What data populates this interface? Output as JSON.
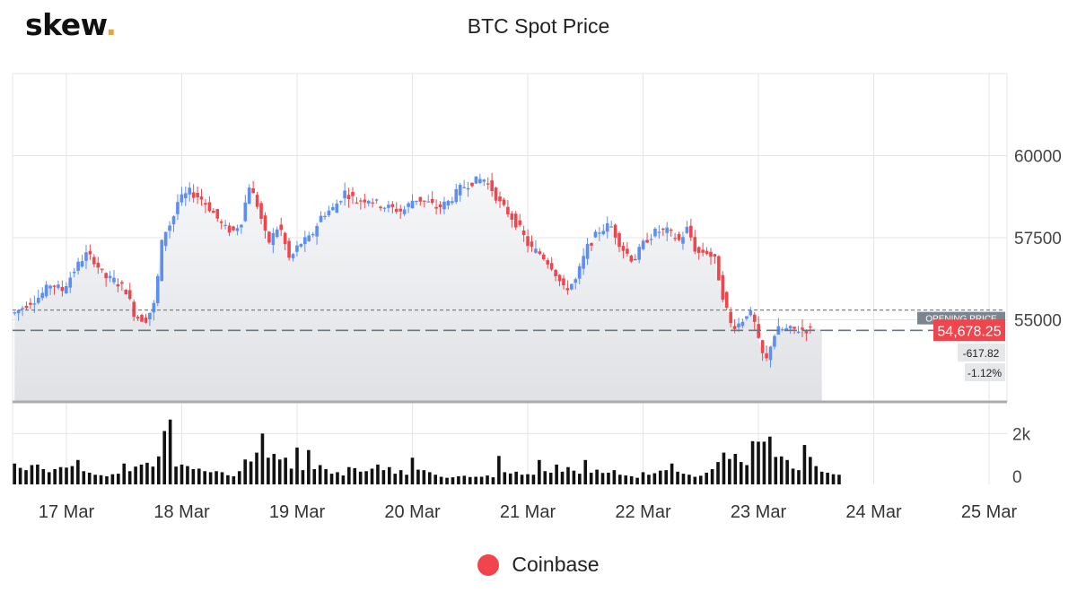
{
  "brand": {
    "name": "skew",
    "suffix": "."
  },
  "colors": {
    "up": "#5d8ff0",
    "down": "#f0454c",
    "accent": "#e8a33a",
    "volume": "#111111"
  },
  "legend": {
    "label": "Coinbase"
  },
  "chart_data": {
    "type": "candlestick",
    "title": "BTC Spot Price",
    "x_ticks": [
      "17 Mar",
      "18 Mar",
      "19 Mar",
      "20 Mar",
      "21 Mar",
      "22 Mar",
      "23 Mar",
      "24 Mar",
      "25 Mar"
    ],
    "y_ticks": [
      55000,
      57500,
      60000
    ],
    "ylim": [
      52500,
      62500
    ],
    "volume_ticks": [
      "0",
      "2k"
    ],
    "volume_ylim": [
      0,
      3000
    ],
    "grid": true,
    "opening_price_label": "OPENING PRICE",
    "opening_price": 55296,
    "last_price": 54678.25,
    "last_price_label": "54,678.25",
    "change_label": "-617.82",
    "change_pct_label": "-1.12%",
    "price_path": [
      [
        16.58,
        55200
      ],
      [
        16.7,
        55500
      ],
      [
        16.8,
        55700
      ],
      [
        16.9,
        56100
      ],
      [
        17.0,
        55900
      ],
      [
        17.1,
        56500
      ],
      [
        17.2,
        57000
      ],
      [
        17.28,
        56800
      ],
      [
        17.36,
        56300
      ],
      [
        17.45,
        56200
      ],
      [
        17.55,
        55900
      ],
      [
        17.63,
        55100
      ],
      [
        17.72,
        55000
      ],
      [
        17.8,
        55500
      ],
      [
        17.87,
        57600
      ],
      [
        17.95,
        58000
      ],
      [
        18.0,
        58600
      ],
      [
        18.1,
        58900
      ],
      [
        18.2,
        58700
      ],
      [
        18.3,
        58300
      ],
      [
        18.4,
        57800
      ],
      [
        18.48,
        57700
      ],
      [
        18.55,
        58000
      ],
      [
        18.62,
        59100
      ],
      [
        18.7,
        58400
      ],
      [
        18.78,
        57300
      ],
      [
        18.88,
        57900
      ],
      [
        18.97,
        56800
      ],
      [
        19.05,
        57300
      ],
      [
        19.15,
        57500
      ],
      [
        19.25,
        58200
      ],
      [
        19.35,
        58400
      ],
      [
        19.45,
        58900
      ],
      [
        19.55,
        58600
      ],
      [
        19.65,
        58700
      ],
      [
        19.75,
        58500
      ],
      [
        19.85,
        58400
      ],
      [
        19.95,
        58300
      ],
      [
        20.05,
        58700
      ],
      [
        20.15,
        58600
      ],
      [
        20.25,
        58400
      ],
      [
        20.35,
        58600
      ],
      [
        20.45,
        59000
      ],
      [
        20.55,
        59200
      ],
      [
        20.65,
        59300
      ],
      [
        20.72,
        59000
      ],
      [
        20.8,
        58500
      ],
      [
        20.88,
        58200
      ],
      [
        20.96,
        57800
      ],
      [
        21.05,
        57200
      ],
      [
        21.15,
        57000
      ],
      [
        21.25,
        56600
      ],
      [
        21.35,
        55900
      ],
      [
        21.45,
        56200
      ],
      [
        21.55,
        57200
      ],
      [
        21.65,
        57700
      ],
      [
        21.75,
        57900
      ],
      [
        21.85,
        57200
      ],
      [
        21.95,
        56800
      ],
      [
        22.05,
        57400
      ],
      [
        22.15,
        57700
      ],
      [
        22.25,
        57700
      ],
      [
        22.35,
        57400
      ],
      [
        22.42,
        57800
      ],
      [
        22.5,
        57000
      ],
      [
        22.58,
        57100
      ],
      [
        22.66,
        56800
      ],
      [
        22.72,
        55800
      ],
      [
        22.8,
        54800
      ],
      [
        22.88,
        54900
      ],
      [
        22.95,
        55300
      ],
      [
        23.0,
        54900
      ],
      [
        23.05,
        54100
      ],
      [
        23.1,
        53700
      ],
      [
        23.15,
        54400
      ],
      [
        23.2,
        54700
      ],
      [
        23.28,
        54700
      ]
    ],
    "volume_bars": [
      [
        16.55,
        820
      ],
      [
        16.6,
        650
      ],
      [
        16.65,
        560
      ],
      [
        16.7,
        760
      ],
      [
        16.75,
        780
      ],
      [
        16.8,
        600
      ],
      [
        16.85,
        480
      ],
      [
        16.9,
        600
      ],
      [
        16.95,
        680
      ],
      [
        17.0,
        660
      ],
      [
        17.05,
        720
      ],
      [
        17.1,
        960
      ],
      [
        17.15,
        520
      ],
      [
        17.2,
        460
      ],
      [
        17.25,
        380
      ],
      [
        17.3,
        360
      ],
      [
        17.35,
        320
      ],
      [
        17.4,
        400
      ],
      [
        17.45,
        420
      ],
      [
        17.5,
        820
      ],
      [
        17.55,
        520
      ],
      [
        17.6,
        700
      ],
      [
        17.65,
        780
      ],
      [
        17.7,
        850
      ],
      [
        17.75,
        700
      ],
      [
        17.8,
        1100
      ],
      [
        17.85,
        2100
      ],
      [
        17.9,
        2550
      ],
      [
        17.95,
        700
      ],
      [
        18.0,
        780
      ],
      [
        18.05,
        720
      ],
      [
        18.1,
        600
      ],
      [
        18.15,
        620
      ],
      [
        18.2,
        520
      ],
      [
        18.25,
        480
      ],
      [
        18.3,
        520
      ],
      [
        18.35,
        480
      ],
      [
        18.4,
        360
      ],
      [
        18.45,
        320
      ],
      [
        18.5,
        520
      ],
      [
        18.55,
        980
      ],
      [
        18.6,
        900
      ],
      [
        18.65,
        1250
      ],
      [
        18.7,
        2000
      ],
      [
        18.75,
        1050
      ],
      [
        18.8,
        1200
      ],
      [
        18.85,
        980
      ],
      [
        18.9,
        1050
      ],
      [
        18.95,
        620
      ],
      [
        19.0,
        1450
      ],
      [
        19.05,
        560
      ],
      [
        19.1,
        1350
      ],
      [
        19.15,
        600
      ],
      [
        19.2,
        760
      ],
      [
        19.25,
        600
      ],
      [
        19.3,
        420
      ],
      [
        19.35,
        480
      ],
      [
        19.4,
        350
      ],
      [
        19.45,
        680
      ],
      [
        19.5,
        640
      ],
      [
        19.55,
        500
      ],
      [
        19.6,
        520
      ],
      [
        19.65,
        620
      ],
      [
        19.7,
        780
      ],
      [
        19.75,
        560
      ],
      [
        19.8,
        680
      ],
      [
        19.85,
        420
      ],
      [
        19.9,
        560
      ],
      [
        19.95,
        380
      ],
      [
        20.0,
        1050
      ],
      [
        20.05,
        580
      ],
      [
        20.1,
        560
      ],
      [
        20.15,
        480
      ],
      [
        20.2,
        380
      ],
      [
        20.25,
        300
      ],
      [
        20.3,
        260
      ],
      [
        20.35,
        280
      ],
      [
        20.4,
        320
      ],
      [
        20.45,
        340
      ],
      [
        20.5,
        290
      ],
      [
        20.55,
        300
      ],
      [
        20.6,
        300
      ],
      [
        20.65,
        350
      ],
      [
        20.7,
        280
      ],
      [
        20.75,
        1120
      ],
      [
        20.8,
        480
      ],
      [
        20.85,
        430
      ],
      [
        20.9,
        500
      ],
      [
        20.95,
        380
      ],
      [
        21.0,
        400
      ],
      [
        21.05,
        380
      ],
      [
        21.1,
        960
      ],
      [
        21.15,
        520
      ],
      [
        21.2,
        460
      ],
      [
        21.25,
        780
      ],
      [
        21.3,
        500
      ],
      [
        21.35,
        680
      ],
      [
        21.4,
        540
      ],
      [
        21.45,
        420
      ],
      [
        21.5,
        960
      ],
      [
        21.55,
        460
      ],
      [
        21.6,
        580
      ],
      [
        21.65,
        450
      ],
      [
        21.7,
        460
      ],
      [
        21.75,
        560
      ],
      [
        21.8,
        380
      ],
      [
        21.85,
        350
      ],
      [
        21.9,
        320
      ],
      [
        21.95,
        260
      ],
      [
        22.0,
        480
      ],
      [
        22.05,
        380
      ],
      [
        22.1,
        440
      ],
      [
        22.15,
        540
      ],
      [
        22.2,
        560
      ],
      [
        22.25,
        820
      ],
      [
        22.3,
        500
      ],
      [
        22.35,
        420
      ],
      [
        22.4,
        380
      ],
      [
        22.45,
        300
      ],
      [
        22.5,
        340
      ],
      [
        22.55,
        460
      ],
      [
        22.6,
        600
      ],
      [
        22.65,
        880
      ],
      [
        22.7,
        1250
      ],
      [
        22.75,
        1000
      ],
      [
        22.8,
        1200
      ],
      [
        22.85,
        880
      ],
      [
        22.9,
        760
      ],
      [
        22.95,
        1700
      ],
      [
        23.0,
        1680
      ],
      [
        23.05,
        1680
      ],
      [
        23.1,
        1880
      ],
      [
        23.15,
        1080
      ],
      [
        23.2,
        1100
      ],
      [
        23.25,
        960
      ],
      [
        23.3,
        620
      ],
      [
        23.35,
        560
      ],
      [
        23.4,
        1550
      ],
      [
        23.45,
        1080
      ],
      [
        23.5,
        720
      ],
      [
        23.55,
        500
      ],
      [
        23.6,
        460
      ],
      [
        23.65,
        400
      ],
      [
        23.7,
        380
      ]
    ]
  }
}
